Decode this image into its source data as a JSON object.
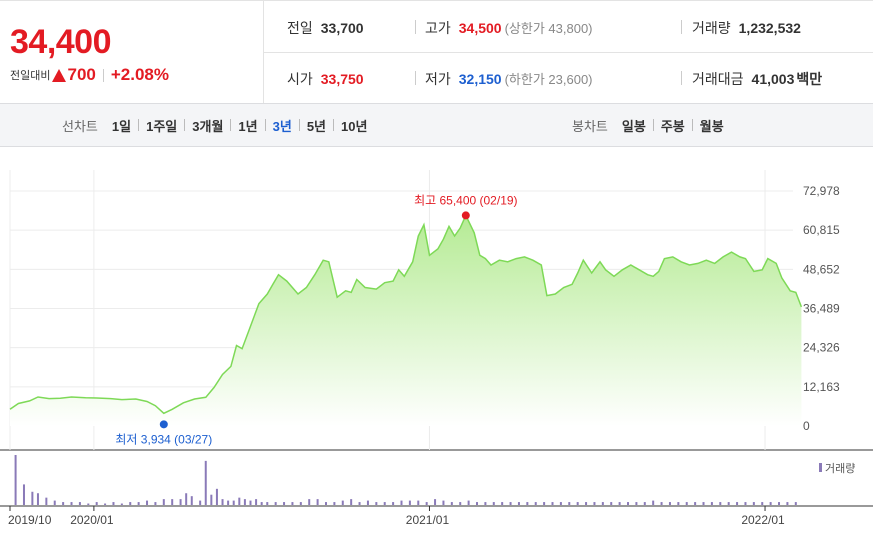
{
  "header": {
    "price": "34,400",
    "change_label": "전일대비",
    "change_value": "700",
    "change_percent": "+2.08%",
    "prev_close_label": "전일",
    "prev_close": "33,700",
    "high_label": "고가",
    "high": "34,500",
    "upper_limit": "(상한가 43,800)",
    "volume_label": "거래량",
    "volume": "1,232,532",
    "open_label": "시가",
    "open": "33,750",
    "low_label": "저가",
    "low": "32,150",
    "lower_limit": "(하한가 23,600)",
    "amount_label": "거래대금",
    "amount": "41,003",
    "amount_unit": "백만"
  },
  "line_options": {
    "title": "선차트",
    "items": [
      "1일",
      "1주일",
      "3개월",
      "1년",
      "3년",
      "5년",
      "10년"
    ],
    "active": "3년"
  },
  "candle_options": {
    "title": "봉차트",
    "items": [
      "일봉",
      "주봉",
      "월봉"
    ]
  },
  "colors": {
    "up": "#e31b23",
    "down": "#1d5fd0",
    "line": "#7ed957",
    "volume": "#8a7ab8"
  },
  "chart_data": {
    "type": "area",
    "ylim": [
      0,
      72978
    ],
    "yticks": [
      "72,978",
      "60,815",
      "48,652",
      "36,489",
      "24,326",
      "12,163",
      "0"
    ],
    "xticks": [
      {
        "x": 0,
        "label": "2019/10"
      },
      {
        "x": 3,
        "label": "2020/01"
      },
      {
        "x": 15,
        "label": "2021/01"
      },
      {
        "x": 27,
        "label": "2022/01"
      }
    ],
    "x_range": [
      0,
      28
    ],
    "high_annotation": {
      "label": "최고 65,400 (02/19)",
      "x": 16.3,
      "value": 65400
    },
    "low_annotation": {
      "label": "최저 3,934 (03/27)",
      "x": 5.5,
      "value": 3934
    },
    "volume_legend": "거래량",
    "series": [
      {
        "values": [
          [
            0.0,
            5200
          ],
          [
            0.3,
            7000
          ],
          [
            0.7,
            7800
          ],
          [
            1.0,
            9000
          ],
          [
            1.4,
            8500
          ],
          [
            1.8,
            8600
          ],
          [
            2.2,
            9000
          ],
          [
            2.7,
            8800
          ],
          [
            3.1,
            8700
          ],
          [
            3.6,
            8500
          ],
          [
            4.0,
            8200
          ],
          [
            4.5,
            8400
          ],
          [
            4.9,
            7600
          ],
          [
            5.2,
            6300
          ],
          [
            5.5,
            3934
          ],
          [
            5.8,
            5200
          ],
          [
            6.2,
            7200
          ],
          [
            6.6,
            8400
          ],
          [
            7.0,
            8900
          ],
          [
            7.3,
            12000
          ],
          [
            7.6,
            16000
          ],
          [
            7.9,
            18500
          ],
          [
            8.1,
            25000
          ],
          [
            8.3,
            24000
          ],
          [
            8.6,
            31000
          ],
          [
            8.9,
            38000
          ],
          [
            9.2,
            41000
          ],
          [
            9.4,
            44000
          ],
          [
            9.6,
            47000
          ],
          [
            9.9,
            45000
          ],
          [
            10.3,
            41000
          ],
          [
            10.6,
            43000
          ],
          [
            10.9,
            47000
          ],
          [
            11.2,
            51500
          ],
          [
            11.4,
            51000
          ],
          [
            11.7,
            40000
          ],
          [
            12.0,
            42000
          ],
          [
            12.2,
            41500
          ],
          [
            12.4,
            45500
          ],
          [
            12.7,
            43000
          ],
          [
            13.1,
            42500
          ],
          [
            13.4,
            44500
          ],
          [
            13.7,
            45000
          ],
          [
            13.9,
            48500
          ],
          [
            14.1,
            46500
          ],
          [
            14.4,
            51000
          ],
          [
            14.6,
            59000
          ],
          [
            14.8,
            62500
          ],
          [
            15.0,
            53000
          ],
          [
            15.3,
            55000
          ],
          [
            15.5,
            58000
          ],
          [
            15.7,
            62000
          ],
          [
            15.9,
            59000
          ],
          [
            16.1,
            61500
          ],
          [
            16.3,
            65400
          ],
          [
            16.6,
            60000
          ],
          [
            16.8,
            53000
          ],
          [
            17.0,
            52000
          ],
          [
            17.2,
            50000
          ],
          [
            17.5,
            51500
          ],
          [
            17.8,
            51000
          ],
          [
            18.1,
            52000
          ],
          [
            18.4,
            52500
          ],
          [
            18.7,
            51500
          ],
          [
            19.0,
            50000
          ],
          [
            19.2,
            40500
          ],
          [
            19.5,
            41000
          ],
          [
            19.8,
            43000
          ],
          [
            20.1,
            44000
          ],
          [
            20.3,
            47500
          ],
          [
            20.5,
            51500
          ],
          [
            20.8,
            47500
          ],
          [
            21.1,
            51000
          ],
          [
            21.3,
            48500
          ],
          [
            21.6,
            46500
          ],
          [
            21.9,
            48500
          ],
          [
            22.2,
            50000
          ],
          [
            22.5,
            48500
          ],
          [
            22.8,
            47000
          ],
          [
            23.0,
            46500
          ],
          [
            23.2,
            48000
          ],
          [
            23.4,
            52000
          ],
          [
            23.7,
            52500
          ],
          [
            24.0,
            51000
          ],
          [
            24.3,
            50000
          ],
          [
            24.6,
            50500
          ],
          [
            24.9,
            51500
          ],
          [
            25.2,
            50500
          ],
          [
            25.5,
            52500
          ],
          [
            25.8,
            54000
          ],
          [
            26.1,
            52500
          ],
          [
            26.3,
            52000
          ],
          [
            26.6,
            48000
          ],
          [
            26.9,
            48500
          ],
          [
            27.1,
            52000
          ],
          [
            27.4,
            50500
          ],
          [
            27.6,
            46000
          ],
          [
            27.9,
            42000
          ],
          [
            28.1,
            41500
          ],
          [
            28.3,
            37000
          ]
        ]
      }
    ],
    "volume": [
      [
        0.2,
        34
      ],
      [
        0.5,
        14
      ],
      [
        0.8,
        9
      ],
      [
        1.0,
        8
      ],
      [
        1.3,
        5
      ],
      [
        1.6,
        3
      ],
      [
        1.9,
        2
      ],
      [
        2.2,
        2
      ],
      [
        2.5,
        2
      ],
      [
        2.8,
        1
      ],
      [
        3.1,
        2
      ],
      [
        3.4,
        1
      ],
      [
        3.7,
        2
      ],
      [
        4.0,
        1
      ],
      [
        4.3,
        2
      ],
      [
        4.6,
        2
      ],
      [
        4.9,
        3
      ],
      [
        5.2,
        2
      ],
      [
        5.5,
        4
      ],
      [
        5.8,
        4
      ],
      [
        6.1,
        4
      ],
      [
        6.3,
        8
      ],
      [
        6.5,
        6
      ],
      [
        6.8,
        3
      ],
      [
        7.0,
        30
      ],
      [
        7.2,
        7
      ],
      [
        7.4,
        11
      ],
      [
        7.6,
        4
      ],
      [
        7.8,
        3
      ],
      [
        8.0,
        3
      ],
      [
        8.2,
        5
      ],
      [
        8.4,
        4
      ],
      [
        8.6,
        3
      ],
      [
        8.8,
        4
      ],
      [
        9.0,
        2
      ],
      [
        9.2,
        2
      ],
      [
        9.5,
        2
      ],
      [
        9.8,
        2
      ],
      [
        10.1,
        2
      ],
      [
        10.4,
        2
      ],
      [
        10.7,
        4
      ],
      [
        11.0,
        4
      ],
      [
        11.3,
        2
      ],
      [
        11.6,
        2
      ],
      [
        11.9,
        3
      ],
      [
        12.2,
        4
      ],
      [
        12.5,
        2
      ],
      [
        12.8,
        3
      ],
      [
        13.1,
        2
      ],
      [
        13.4,
        2
      ],
      [
        13.7,
        2
      ],
      [
        14.0,
        3
      ],
      [
        14.3,
        3
      ],
      [
        14.6,
        3
      ],
      [
        14.9,
        2
      ],
      [
        15.2,
        4
      ],
      [
        15.5,
        3
      ],
      [
        15.8,
        2
      ],
      [
        16.1,
        2
      ],
      [
        16.4,
        3
      ],
      [
        16.7,
        2
      ],
      [
        17.0,
        2
      ],
      [
        17.3,
        2
      ],
      [
        17.6,
        2
      ],
      [
        17.9,
        2
      ],
      [
        18.2,
        2
      ],
      [
        18.5,
        2
      ],
      [
        18.8,
        2
      ],
      [
        19.1,
        2
      ],
      [
        19.4,
        2
      ],
      [
        19.7,
        2
      ],
      [
        20.0,
        2
      ],
      [
        20.3,
        2
      ],
      [
        20.6,
        2
      ],
      [
        20.9,
        2
      ],
      [
        21.2,
        2
      ],
      [
        21.5,
        2
      ],
      [
        21.8,
        2
      ],
      [
        22.1,
        2
      ],
      [
        22.4,
        2
      ],
      [
        22.7,
        2
      ],
      [
        23.0,
        3
      ],
      [
        23.3,
        2
      ],
      [
        23.6,
        2
      ],
      [
        23.9,
        2
      ],
      [
        24.2,
        2
      ],
      [
        24.5,
        2
      ],
      [
        24.8,
        2
      ],
      [
        25.1,
        2
      ],
      [
        25.4,
        2
      ],
      [
        25.7,
        2
      ],
      [
        26.0,
        2
      ],
      [
        26.3,
        2
      ],
      [
        26.6,
        2
      ],
      [
        26.9,
        2
      ],
      [
        27.2,
        2
      ],
      [
        27.5,
        2
      ],
      [
        27.8,
        2
      ],
      [
        28.1,
        2
      ]
    ]
  }
}
